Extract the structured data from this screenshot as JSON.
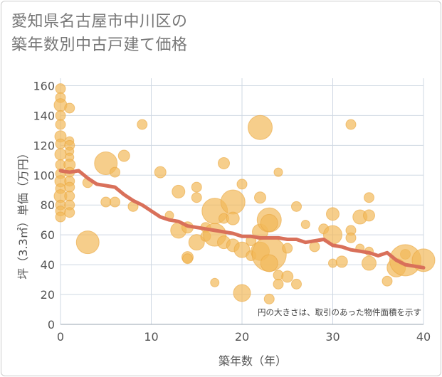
{
  "title_line1": "愛知県名古屋市中川区の",
  "title_line2": "築年数別中古戸建て価格",
  "chart_data": {
    "type": "scatter",
    "xlabel": "築年数（年）",
    "ylabel": "坪（3.3㎡）単価（万円）",
    "note": "円の大きさは、取引のあった物件面積を示す",
    "xlim": [
      0,
      40
    ],
    "ylim": [
      0,
      165
    ],
    "xticks": [
      0,
      10,
      20,
      30,
      40
    ],
    "yticks": [
      0,
      20,
      40,
      60,
      80,
      100,
      120,
      140,
      160
    ],
    "grid": true,
    "colors": {
      "bubble": "#f2b95a",
      "trend": "#d9705a",
      "grid": "#cfd8e3"
    },
    "trend_line": {
      "x": [
        0,
        1,
        2,
        3,
        4,
        5,
        6,
        7,
        8,
        9,
        10,
        11,
        12,
        13,
        14,
        15,
        16,
        17,
        18,
        19,
        20,
        21,
        22,
        23,
        24,
        25,
        26,
        27,
        28,
        29,
        30,
        31,
        32,
        33,
        34,
        35,
        36,
        37,
        38,
        39,
        40
      ],
      "y": [
        103,
        102,
        103,
        98,
        94,
        93,
        92,
        87,
        83,
        80,
        76,
        72,
        70,
        69,
        66,
        65,
        64,
        63,
        62,
        61,
        59,
        59,
        58,
        58,
        58,
        57,
        57,
        55,
        56,
        57,
        53,
        52,
        50,
        49,
        48,
        46,
        48,
        43,
        40,
        39,
        38
      ]
    },
    "points": [
      {
        "x": 0,
        "y": 158,
        "size": 7
      },
      {
        "x": 0,
        "y": 152,
        "size": 7
      },
      {
        "x": 0,
        "y": 147,
        "size": 9
      },
      {
        "x": 0,
        "y": 140,
        "size": 7
      },
      {
        "x": 0,
        "y": 134,
        "size": 7
      },
      {
        "x": 0,
        "y": 126,
        "size": 8
      },
      {
        "x": 0,
        "y": 121,
        "size": 7
      },
      {
        "x": 0,
        "y": 114,
        "size": 8
      },
      {
        "x": 0,
        "y": 107,
        "size": 7
      },
      {
        "x": 0,
        "y": 101,
        "size": 7
      },
      {
        "x": 0,
        "y": 96,
        "size": 8
      },
      {
        "x": 0,
        "y": 91,
        "size": 7
      },
      {
        "x": 0,
        "y": 86,
        "size": 9
      },
      {
        "x": 0,
        "y": 80,
        "size": 7
      },
      {
        "x": 0,
        "y": 76,
        "size": 7
      },
      {
        "x": 0,
        "y": 72,
        "size": 7
      },
      {
        "x": 1,
        "y": 145,
        "size": 7
      },
      {
        "x": 1,
        "y": 123,
        "size": 6
      },
      {
        "x": 1,
        "y": 120,
        "size": 7
      },
      {
        "x": 1,
        "y": 116,
        "size": 6
      },
      {
        "x": 1,
        "y": 112,
        "size": 6
      },
      {
        "x": 1,
        "y": 107,
        "size": 8
      },
      {
        "x": 1,
        "y": 102,
        "size": 7
      },
      {
        "x": 1,
        "y": 96,
        "size": 7
      },
      {
        "x": 1,
        "y": 92,
        "size": 7
      },
      {
        "x": 1,
        "y": 86,
        "size": 7
      },
      {
        "x": 1,
        "y": 80,
        "size": 7
      },
      {
        "x": 1,
        "y": 75,
        "size": 7
      },
      {
        "x": 3,
        "y": 95,
        "size": 7
      },
      {
        "x": 3,
        "y": 55,
        "size": 16
      },
      {
        "x": 5,
        "y": 108,
        "size": 16
      },
      {
        "x": 5,
        "y": 82,
        "size": 7
      },
      {
        "x": 6,
        "y": 102,
        "size": 7
      },
      {
        "x": 6,
        "y": 82,
        "size": 7
      },
      {
        "x": 7,
        "y": 113,
        "size": 8
      },
      {
        "x": 8,
        "y": 79,
        "size": 7
      },
      {
        "x": 9,
        "y": 134,
        "size": 7
      },
      {
        "x": 11,
        "y": 102,
        "size": 8
      },
      {
        "x": 12,
        "y": 73,
        "size": 6
      },
      {
        "x": 13,
        "y": 89,
        "size": 9
      },
      {
        "x": 13,
        "y": 63,
        "size": 11
      },
      {
        "x": 14,
        "y": 65,
        "size": 8
      },
      {
        "x": 14,
        "y": 45,
        "size": 8
      },
      {
        "x": 14,
        "y": 44,
        "size": 7
      },
      {
        "x": 15,
        "y": 92,
        "size": 7
      },
      {
        "x": 15,
        "y": 85,
        "size": 7
      },
      {
        "x": 15,
        "y": 55,
        "size": 11
      },
      {
        "x": 16,
        "y": 65,
        "size": 7
      },
      {
        "x": 16,
        "y": 59,
        "size": 7
      },
      {
        "x": 17,
        "y": 76,
        "size": 18
      },
      {
        "x": 17,
        "y": 60,
        "size": 16
      },
      {
        "x": 17,
        "y": 28,
        "size": 6
      },
      {
        "x": 18,
        "y": 108,
        "size": 8
      },
      {
        "x": 18,
        "y": 55,
        "size": 9
      },
      {
        "x": 18,
        "y": 71,
        "size": 7
      },
      {
        "x": 19,
        "y": 82,
        "size": 17
      },
      {
        "x": 19,
        "y": 71,
        "size": 9
      },
      {
        "x": 19,
        "y": 53,
        "size": 9
      },
      {
        "x": 20,
        "y": 94,
        "size": 7
      },
      {
        "x": 20,
        "y": 50,
        "size": 11
      },
      {
        "x": 20,
        "y": 21,
        "size": 12
      },
      {
        "x": 21,
        "y": 56,
        "size": 7
      },
      {
        "x": 21,
        "y": 46,
        "size": 7
      },
      {
        "x": 22,
        "y": 132,
        "size": 17
      },
      {
        "x": 22,
        "y": 85,
        "size": 8
      },
      {
        "x": 22,
        "y": 62,
        "size": 11
      },
      {
        "x": 22,
        "y": 49,
        "size": 13
      },
      {
        "x": 23,
        "y": 70,
        "size": 17
      },
      {
        "x": 23,
        "y": 68,
        "size": 12
      },
      {
        "x": 23,
        "y": 47,
        "size": 24
      },
      {
        "x": 23,
        "y": 41,
        "size": 12
      },
      {
        "x": 23,
        "y": 17,
        "size": 7
      },
      {
        "x": 24,
        "y": 102,
        "size": 6
      },
      {
        "x": 24,
        "y": 33,
        "size": 7
      },
      {
        "x": 24,
        "y": 27,
        "size": 7
      },
      {
        "x": 25,
        "y": 51,
        "size": 7
      },
      {
        "x": 25,
        "y": 32,
        "size": 8
      },
      {
        "x": 26,
        "y": 79,
        "size": 7
      },
      {
        "x": 26,
        "y": 27,
        "size": 7
      },
      {
        "x": 27,
        "y": 67,
        "size": 6
      },
      {
        "x": 28,
        "y": 52,
        "size": 7
      },
      {
        "x": 29,
        "y": 64,
        "size": 7
      },
      {
        "x": 30,
        "y": 74,
        "size": 9
      },
      {
        "x": 30,
        "y": 60,
        "size": 13
      },
      {
        "x": 30,
        "y": 41,
        "size": 6
      },
      {
        "x": 31,
        "y": 42,
        "size": 8
      },
      {
        "x": 32,
        "y": 134,
        "size": 7
      },
      {
        "x": 32,
        "y": 63,
        "size": 7
      },
      {
        "x": 32,
        "y": 58,
        "size": 7
      },
      {
        "x": 33,
        "y": 72,
        "size": 10
      },
      {
        "x": 33,
        "y": 51,
        "size": 6
      },
      {
        "x": 34,
        "y": 85,
        "size": 7
      },
      {
        "x": 34,
        "y": 73,
        "size": 8
      },
      {
        "x": 34,
        "y": 49,
        "size": 6
      },
      {
        "x": 34,
        "y": 41,
        "size": 10
      },
      {
        "x": 36,
        "y": 29,
        "size": 7
      },
      {
        "x": 37,
        "y": 38,
        "size": 13
      },
      {
        "x": 38,
        "y": 47,
        "size": 7
      },
      {
        "x": 38,
        "y": 43,
        "size": 22
      },
      {
        "x": 40,
        "y": 43,
        "size": 16
      }
    ]
  }
}
